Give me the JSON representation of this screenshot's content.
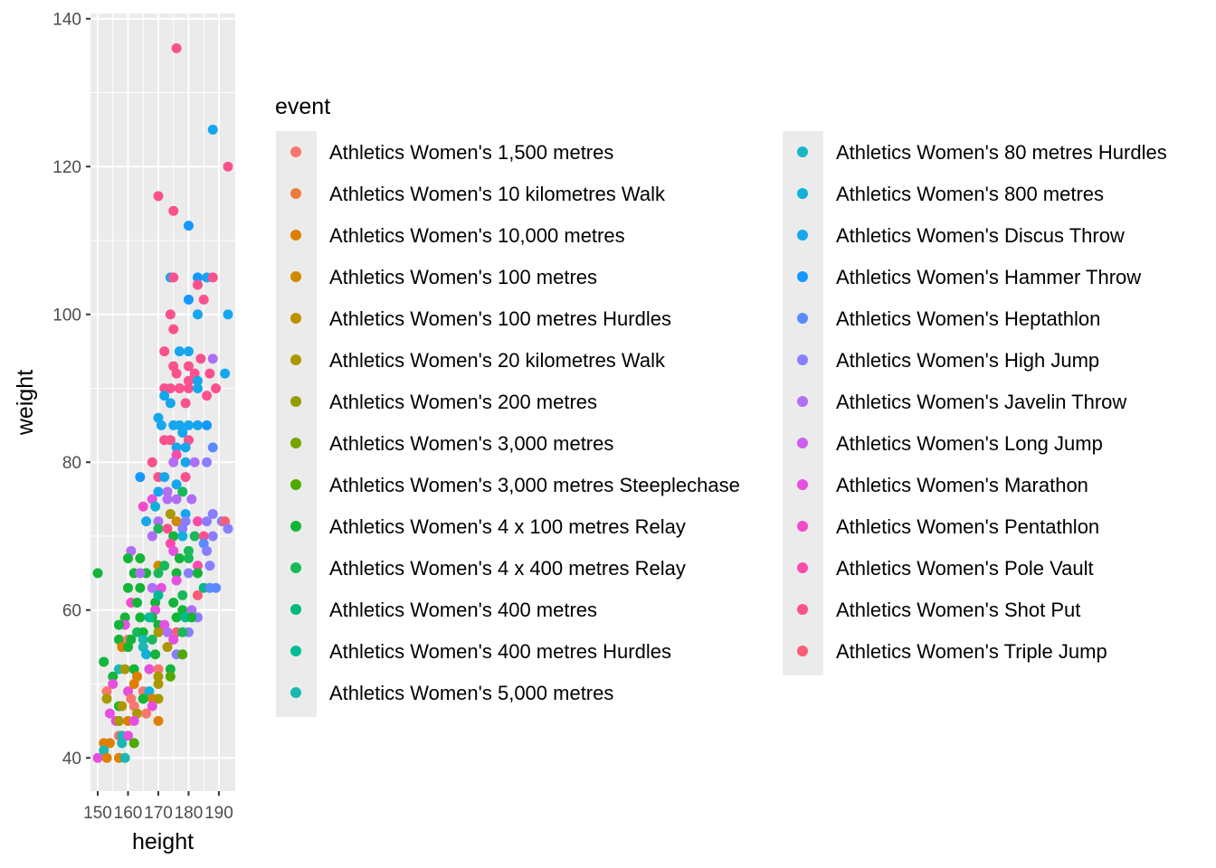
{
  "chart_data": {
    "type": "scatter",
    "title": "",
    "xlabel": "height",
    "ylabel": "weight",
    "xlim": [
      147.6,
      195.4
    ],
    "ylim": [
      35.5,
      140.7
    ],
    "xticks": [
      150,
      160,
      170,
      180,
      190
    ],
    "yticks": [
      40,
      60,
      80,
      100,
      120,
      140
    ],
    "grid": true,
    "legend": {
      "title": "event",
      "placement": "right",
      "entries": [
        {
          "label": "Athletics Women's 1,500 metres",
          "color": "#F8766D"
        },
        {
          "label": "Athletics Women's 10 kilometres Walk",
          "color": "#EC7B40"
        },
        {
          "label": "Athletics Women's 10,000 metres",
          "color": "#DE7F00"
        },
        {
          "label": "Athletics Women's 100 metres",
          "color": "#CF8A00"
        },
        {
          "label": "Athletics Women's 100 metres Hurdles",
          "color": "#BE9000"
        },
        {
          "label": "Athletics Women's 20 kilometres Walk",
          "color": "#A99800"
        },
        {
          "label": "Athletics Women's 200 metres",
          "color": "#929E00"
        },
        {
          "label": "Athletics Women's 3,000 metres",
          "color": "#76A400"
        },
        {
          "label": "Athletics Women's 3,000 metres Steeplechase",
          "color": "#4FAA00"
        },
        {
          "label": "Athletics Women's 4 x 100 metres Relay",
          "color": "#13B538"
        },
        {
          "label": "Athletics Women's 4 x 400 metres Relay",
          "color": "#19B95A"
        },
        {
          "label": "Athletics Women's 400 metres",
          "color": "#00BA7A"
        },
        {
          "label": "Athletics Women's 400 metres Hurdles",
          "color": "#00BC95"
        },
        {
          "label": "Athletics Women's 5,000 metres",
          "color": "#1AB7B3"
        },
        {
          "label": "Athletics Women's 80 metres Hurdles",
          "color": "#18B6C5"
        },
        {
          "label": "Athletics Women's 800 metres",
          "color": "#12B0DC"
        },
        {
          "label": "Athletics Women's Discus Throw",
          "color": "#16A6EE"
        },
        {
          "label": "Athletics Women's Hammer Throw",
          "color": "#1497FF"
        },
        {
          "label": "Athletics Women's Heptathlon",
          "color": "#5A8AFF"
        },
        {
          "label": "Athletics Women's High Jump",
          "color": "#897EFF"
        },
        {
          "label": "Athletics Women's Javelin Throw",
          "color": "#B06EF5"
        },
        {
          "label": "Athletics Women's Long Jump",
          "color": "#D05DF0"
        },
        {
          "label": "Athletics Women's Marathon",
          "color": "#E64FDF"
        },
        {
          "label": "Athletics Women's Pentathlon",
          "color": "#F44BC8"
        },
        {
          "label": "Athletics Women's Pole Vault",
          "color": "#FA4BAB"
        },
        {
          "label": "Athletics Women's Shot Put",
          "color": "#FB508E"
        },
        {
          "label": "Athletics Women's Triple Jump",
          "color": "#F95D74"
        }
      ]
    },
    "points_format": [
      "height",
      "weight",
      "event_index"
    ],
    "points": [
      [
        176,
        136,
        25
      ],
      [
        188,
        125,
        16
      ],
      [
        193,
        120,
        25
      ],
      [
        170,
        116,
        25
      ],
      [
        175,
        114,
        25
      ],
      [
        180,
        112,
        17
      ],
      [
        174,
        105,
        16
      ],
      [
        175,
        105,
        25
      ],
      [
        183,
        105,
        17
      ],
      [
        186,
        105,
        16
      ],
      [
        188,
        105,
        25
      ],
      [
        183,
        104,
        25
      ],
      [
        180,
        102,
        17
      ],
      [
        185,
        102,
        25
      ],
      [
        174,
        100,
        25
      ],
      [
        183,
        100,
        16
      ],
      [
        193,
        100,
        16
      ],
      [
        175,
        98,
        25
      ],
      [
        172,
        95,
        25
      ],
      [
        177,
        95,
        16
      ],
      [
        180,
        95,
        16
      ],
      [
        184,
        94,
        25
      ],
      [
        188,
        94,
        20
      ],
      [
        175,
        93,
        25
      ],
      [
        180,
        93,
        25
      ],
      [
        176,
        92,
        25
      ],
      [
        182,
        92,
        25
      ],
      [
        187,
        92,
        25
      ],
      [
        192,
        92,
        16
      ],
      [
        180,
        91,
        25
      ],
      [
        183,
        91,
        16
      ],
      [
        172,
        90,
        25
      ],
      [
        174,
        90,
        25
      ],
      [
        177,
        90,
        25
      ],
      [
        180,
        90,
        25
      ],
      [
        183,
        90,
        16
      ],
      [
        189,
        90,
        25
      ],
      [
        172,
        89,
        16
      ],
      [
        186,
        89,
        25
      ],
      [
        174,
        88,
        16
      ],
      [
        179,
        88,
        25
      ],
      [
        170,
        86,
        16
      ],
      [
        171,
        85,
        16
      ],
      [
        175,
        85,
        16
      ],
      [
        177,
        85,
        16
      ],
      [
        180,
        85,
        16
      ],
      [
        183,
        85,
        16
      ],
      [
        186,
        85,
        17
      ],
      [
        172,
        83,
        25
      ],
      [
        174,
        83,
        25
      ],
      [
        178,
        84,
        16
      ],
      [
        180,
        83,
        25
      ],
      [
        176,
        82,
        16
      ],
      [
        179,
        82,
        16
      ],
      [
        188,
        82,
        18
      ],
      [
        176,
        81,
        24
      ],
      [
        168,
        80,
        25
      ],
      [
        175,
        80,
        20
      ],
      [
        179,
        80,
        16
      ],
      [
        182,
        80,
        20
      ],
      [
        186,
        80,
        19
      ],
      [
        164,
        78,
        17
      ],
      [
        170,
        78,
        25
      ],
      [
        172,
        78,
        16
      ],
      [
        179,
        78,
        25
      ],
      [
        176,
        77,
        16
      ],
      [
        170,
        76,
        16
      ],
      [
        173,
        76,
        20
      ],
      [
        178,
        76,
        10
      ],
      [
        168,
        75,
        22
      ],
      [
        173,
        75,
        20
      ],
      [
        176,
        75,
        20
      ],
      [
        181,
        75,
        20
      ],
      [
        165,
        74,
        23
      ],
      [
        169,
        74,
        15
      ],
      [
        174,
        73,
        5
      ],
      [
        179,
        73,
        16
      ],
      [
        188,
        73,
        19
      ],
      [
        166,
        72,
        16
      ],
      [
        170,
        72,
        20
      ],
      [
        176,
        72,
        3
      ],
      [
        179,
        72,
        19
      ],
      [
        183,
        72,
        24
      ],
      [
        186,
        72,
        19
      ],
      [
        191,
        72,
        19
      ],
      [
        192,
        72,
        26
      ],
      [
        193,
        71,
        19
      ],
      [
        170,
        71,
        10
      ],
      [
        173,
        71,
        25
      ],
      [
        178,
        71,
        19
      ],
      [
        182,
        70,
        10
      ],
      [
        168,
        70,
        20
      ],
      [
        188,
        70,
        19
      ],
      [
        175,
        70,
        9
      ],
      [
        178,
        70,
        15
      ],
      [
        185,
        70,
        25
      ],
      [
        185,
        69,
        18
      ],
      [
        174,
        69,
        24
      ],
      [
        175,
        68,
        22
      ],
      [
        180,
        68,
        10
      ],
      [
        186,
        68,
        19
      ],
      [
        161,
        68,
        20
      ],
      [
        160,
        67,
        9
      ],
      [
        164,
        67,
        9
      ],
      [
        170,
        66,
        3
      ],
      [
        172,
        66,
        10
      ],
      [
        177,
        67,
        9
      ],
      [
        180,
        67,
        10
      ],
      [
        183,
        66,
        24
      ],
      [
        187,
        66,
        19
      ],
      [
        150,
        65,
        9
      ],
      [
        162,
        65,
        9
      ],
      [
        166,
        65,
        9
      ],
      [
        164,
        65,
        20
      ],
      [
        170,
        65,
        10
      ],
      [
        176,
        65,
        9
      ],
      [
        176,
        64,
        22
      ],
      [
        180,
        65,
        19
      ],
      [
        183,
        65,
        9
      ],
      [
        160,
        63,
        9
      ],
      [
        164,
        63,
        9
      ],
      [
        168,
        63,
        20
      ],
      [
        171,
        63,
        22
      ],
      [
        178,
        62,
        10
      ],
      [
        185,
        63,
        11
      ],
      [
        187,
        63,
        18
      ],
      [
        189,
        63,
        18
      ],
      [
        183,
        62,
        26
      ],
      [
        161,
        61,
        23
      ],
      [
        163,
        61,
        9
      ],
      [
        169,
        61,
        9
      ],
      [
        170,
        62,
        12
      ],
      [
        175,
        61,
        9
      ],
      [
        169,
        60,
        22
      ],
      [
        178,
        60,
        9
      ],
      [
        181,
        60,
        20
      ],
      [
        183,
        59,
        19
      ],
      [
        159,
        59,
        9
      ],
      [
        159,
        58,
        22
      ],
      [
        157,
        58,
        9
      ],
      [
        164,
        59,
        9
      ],
      [
        168,
        59,
        9
      ],
      [
        167,
        59,
        12
      ],
      [
        170,
        58,
        9
      ],
      [
        172,
        58,
        22
      ],
      [
        176,
        59,
        9
      ],
      [
        179,
        59,
        12
      ],
      [
        181,
        59,
        9
      ],
      [
        180,
        57,
        19
      ],
      [
        176,
        57,
        26
      ],
      [
        178,
        57,
        10
      ],
      [
        157,
        56,
        9
      ],
      [
        163,
        57,
        10
      ],
      [
        165,
        57,
        9
      ],
      [
        170,
        57,
        5
      ],
      [
        160,
        56,
        0
      ],
      [
        161,
        56,
        9
      ],
      [
        165,
        56,
        13
      ],
      [
        168,
        56,
        10
      ],
      [
        173,
        57,
        20
      ],
      [
        175,
        56,
        22
      ],
      [
        158,
        55,
        2
      ],
      [
        160,
        55,
        9
      ],
      [
        165,
        55,
        13
      ],
      [
        166,
        54,
        15
      ],
      [
        169,
        54,
        9
      ],
      [
        173,
        55,
        5
      ],
      [
        176,
        54,
        19
      ],
      [
        178,
        54,
        8
      ],
      [
        152,
        53,
        9
      ],
      [
        157,
        52,
        13
      ],
      [
        159,
        52,
        5
      ],
      [
        162,
        52,
        9
      ],
      [
        163,
        51,
        2
      ],
      [
        167,
        52,
        22
      ],
      [
        170,
        52,
        0
      ],
      [
        174,
        52,
        9
      ],
      [
        174,
        51,
        8
      ],
      [
        170,
        51,
        5
      ],
      [
        155,
        51,
        9
      ],
      [
        155,
        50,
        22
      ],
      [
        153,
        49,
        0
      ],
      [
        153,
        48,
        5
      ],
      [
        160,
        49,
        22
      ],
      [
        165,
        49,
        0
      ],
      [
        167,
        49,
        15
      ],
      [
        168,
        48,
        2
      ],
      [
        170,
        48,
        5
      ],
      [
        165,
        48,
        9
      ],
      [
        161,
        48,
        0
      ],
      [
        162,
        50,
        2
      ],
      [
        170,
        50,
        5
      ],
      [
        157,
        47,
        9
      ],
      [
        158,
        47,
        5
      ],
      [
        162,
        47,
        0
      ],
      [
        168,
        47,
        22
      ],
      [
        154,
        46,
        22
      ],
      [
        163,
        46,
        5
      ],
      [
        166,
        46,
        0
      ],
      [
        156,
        45,
        22
      ],
      [
        157,
        45,
        5
      ],
      [
        160,
        45,
        2
      ],
      [
        162,
        45,
        22
      ],
      [
        170,
        45,
        2
      ],
      [
        157,
        43,
        0
      ],
      [
        158,
        43,
        13
      ],
      [
        160,
        43,
        22
      ],
      [
        152,
        42,
        2
      ],
      [
        154,
        42,
        2
      ],
      [
        158,
        42,
        13
      ],
      [
        162,
        42,
        8
      ],
      [
        152,
        41,
        13
      ],
      [
        150,
        40,
        22
      ],
      [
        153,
        40,
        2
      ],
      [
        157,
        40,
        2
      ],
      [
        159,
        40,
        13
      ]
    ]
  }
}
